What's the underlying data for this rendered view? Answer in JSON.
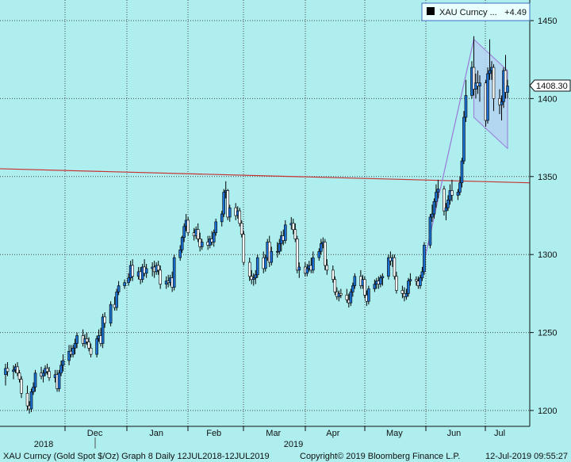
{
  "chart_data": {
    "type": "candlestick",
    "legend": {
      "symbol": "XAU Curncy ...",
      "change": "+4.49"
    },
    "last_price": "1408.30",
    "y_axis": {
      "ylim": [
        1192,
        1460
      ],
      "ticks": [
        1200,
        1250,
        1300,
        1350,
        1400,
        1450
      ],
      "tick_labels": [
        "1200",
        "1250",
        "1300",
        "1350",
        "1400",
        "1450"
      ]
    },
    "x_axis": {
      "months": [
        "Dec",
        "Jan",
        "Feb",
        "Mar",
        "Apr",
        "May",
        "Jun",
        "Jul"
      ],
      "years": [
        "2018",
        "2019"
      ]
    },
    "grid": true,
    "x_range": [
      "2018-07-12",
      "2019-07-12"
    ],
    "candles": [
      [
        "2018-11-01",
        1223,
        1230,
        1216,
        1227
      ],
      [
        "2018-11-02",
        1227,
        1231,
        1222,
        1225
      ],
      [
        "2018-11-05",
        1225,
        1229,
        1220,
        1226
      ],
      [
        "2018-11-06",
        1226,
        1230,
        1224,
        1228
      ],
      [
        "2018-11-07",
        1228,
        1231,
        1222,
        1224
      ],
      [
        "2018-11-08",
        1224,
        1226,
        1218,
        1220
      ],
      [
        "2018-11-09",
        1220,
        1222,
        1208,
        1211
      ],
      [
        "2018-11-12",
        1211,
        1216,
        1200,
        1203
      ],
      [
        "2018-11-13",
        1203,
        1206,
        1198,
        1201
      ],
      [
        "2018-11-14",
        1201,
        1214,
        1199,
        1212
      ],
      [
        "2018-11-15",
        1212,
        1218,
        1210,
        1215
      ],
      [
        "2018-11-16",
        1215,
        1226,
        1212,
        1224
      ],
      [
        "2018-11-19",
        1224,
        1228,
        1220,
        1222
      ],
      [
        "2018-11-20",
        1222,
        1226,
        1218,
        1224
      ],
      [
        "2018-11-21",
        1224,
        1229,
        1222,
        1227
      ],
      [
        "2018-11-22",
        1227,
        1230,
        1223,
        1225
      ],
      [
        "2018-11-23",
        1225,
        1228,
        1219,
        1221
      ],
      [
        "2018-11-26",
        1221,
        1226,
        1218,
        1223
      ],
      [
        "2018-11-27",
        1223,
        1226,
        1212,
        1214
      ],
      [
        "2018-11-28",
        1214,
        1226,
        1212,
        1224
      ],
      [
        "2018-11-29",
        1224,
        1232,
        1222,
        1229
      ],
      [
        "2018-11-30",
        1229,
        1236,
        1225,
        1232
      ],
      [
        "2018-12-03",
        1232,
        1242,
        1229,
        1238
      ],
      [
        "2018-12-04",
        1238,
        1242,
        1234,
        1236
      ],
      [
        "2018-12-05",
        1236,
        1242,
        1234,
        1240
      ],
      [
        "2018-12-06",
        1240,
        1246,
        1236,
        1243
      ],
      [
        "2018-12-07",
        1243,
        1250,
        1240,
        1248
      ],
      [
        "2018-12-10",
        1248,
        1252,
        1241,
        1243
      ],
      [
        "2018-12-11",
        1243,
        1249,
        1240,
        1246
      ],
      [
        "2018-12-12",
        1246,
        1250,
        1242,
        1244
      ],
      [
        "2018-12-13",
        1244,
        1247,
        1238,
        1240
      ],
      [
        "2018-12-14",
        1240,
        1243,
        1234,
        1236
      ],
      [
        "2018-12-17",
        1236,
        1248,
        1234,
        1246
      ],
      [
        "2018-12-18",
        1246,
        1252,
        1244,
        1248
      ],
      [
        "2018-12-19",
        1248,
        1253,
        1241,
        1243
      ],
      [
        "2018-12-20",
        1243,
        1262,
        1240,
        1260
      ],
      [
        "2018-12-21",
        1260,
        1263,
        1253,
        1256
      ],
      [
        "2018-12-24",
        1256,
        1270,
        1254,
        1268
      ],
      [
        "2018-12-26",
        1268,
        1273,
        1264,
        1266
      ],
      [
        "2018-12-27",
        1266,
        1278,
        1264,
        1276
      ],
      [
        "2018-12-28",
        1276,
        1283,
        1274,
        1280
      ],
      [
        "2018-12-31",
        1280,
        1284,
        1278,
        1282
      ],
      [
        "2019-01-02",
        1282,
        1288,
        1280,
        1285
      ],
      [
        "2019-01-03",
        1285,
        1296,
        1283,
        1293
      ],
      [
        "2019-01-04",
        1293,
        1297,
        1283,
        1286
      ],
      [
        "2019-01-07",
        1286,
        1292,
        1284,
        1289
      ],
      [
        "2019-01-08",
        1289,
        1292,
        1281,
        1284
      ],
      [
        "2019-01-09",
        1284,
        1294,
        1282,
        1292
      ],
      [
        "2019-01-10",
        1292,
        1297,
        1286,
        1288
      ],
      [
        "2019-01-11",
        1288,
        1294,
        1285,
        1291
      ],
      [
        "2019-01-14",
        1291,
        1295,
        1286,
        1292
      ],
      [
        "2019-01-15",
        1292,
        1296,
        1285,
        1289
      ],
      [
        "2019-01-16",
        1289,
        1295,
        1287,
        1293
      ],
      [
        "2019-01-17",
        1293,
        1296,
        1287,
        1290
      ],
      [
        "2019-01-18",
        1290,
        1293,
        1278,
        1281
      ],
      [
        "2019-01-21",
        1281,
        1286,
        1278,
        1283
      ],
      [
        "2019-01-22",
        1283,
        1287,
        1279,
        1282
      ],
      [
        "2019-01-23",
        1282,
        1287,
        1280,
        1285
      ],
      [
        "2019-01-24",
        1285,
        1289,
        1276,
        1279
      ],
      [
        "2019-01-25",
        1279,
        1300,
        1277,
        1298
      ],
      [
        "2019-01-28",
        1298,
        1306,
        1296,
        1303
      ],
      [
        "2019-01-29",
        1303,
        1312,
        1301,
        1311
      ],
      [
        "2019-01-30",
        1311,
        1320,
        1308,
        1318
      ],
      [
        "2019-01-31",
        1318,
        1326,
        1315,
        1322
      ],
      [
        "2019-02-01",
        1322,
        1324,
        1312,
        1314
      ],
      [
        "2019-02-04",
        1314,
        1317,
        1309,
        1312
      ],
      [
        "2019-02-05",
        1312,
        1318,
        1310,
        1316
      ],
      [
        "2019-02-06",
        1316,
        1320,
        1308,
        1310
      ],
      [
        "2019-02-07",
        1310,
        1314,
        1302,
        1305
      ],
      [
        "2019-02-08",
        1305,
        1310,
        1303,
        1308
      ],
      [
        "2019-02-11",
        1308,
        1312,
        1303,
        1306
      ],
      [
        "2019-02-12",
        1306,
        1312,
        1304,
        1310
      ],
      [
        "2019-02-13",
        1310,
        1315,
        1306,
        1308
      ],
      [
        "2019-02-14",
        1308,
        1316,
        1305,
        1314
      ],
      [
        "2019-02-15",
        1314,
        1323,
        1312,
        1321
      ],
      [
        "2019-02-18",
        1321,
        1328,
        1318,
        1326
      ],
      [
        "2019-02-19",
        1326,
        1342,
        1324,
        1340
      ],
      [
        "2019-02-20",
        1340,
        1347,
        1336,
        1341
      ],
      [
        "2019-02-21",
        1341,
        1342,
        1322,
        1324
      ],
      [
        "2019-02-22",
        1324,
        1332,
        1321,
        1330
      ],
      [
        "2019-02-25",
        1330,
        1333,
        1322,
        1325
      ],
      [
        "2019-02-26",
        1325,
        1331,
        1323,
        1328
      ],
      [
        "2019-02-27",
        1328,
        1330,
        1318,
        1320
      ],
      [
        "2019-02-28",
        1320,
        1322,
        1311,
        1313
      ],
      [
        "2019-03-01",
        1313,
        1315,
        1293,
        1295
      ],
      [
        "2019-03-04",
        1295,
        1298,
        1283,
        1286
      ],
      [
        "2019-03-05",
        1286,
        1290,
        1281,
        1284
      ],
      [
        "2019-03-06",
        1284,
        1288,
        1280,
        1285
      ],
      [
        "2019-03-07",
        1285,
        1290,
        1281,
        1287
      ],
      [
        "2019-03-08",
        1287,
        1300,
        1285,
        1298
      ],
      [
        "2019-03-11",
        1298,
        1302,
        1288,
        1291
      ],
      [
        "2019-03-12",
        1291,
        1300,
        1289,
        1298
      ],
      [
        "2019-03-13",
        1298,
        1310,
        1296,
        1308
      ],
      [
        "2019-03-14",
        1308,
        1312,
        1292,
        1295
      ],
      [
        "2019-03-15",
        1295,
        1305,
        1293,
        1302
      ],
      [
        "2019-03-18",
        1302,
        1308,
        1298,
        1302
      ],
      [
        "2019-03-19",
        1302,
        1310,
        1300,
        1307
      ],
      [
        "2019-03-20",
        1307,
        1315,
        1302,
        1312
      ],
      [
        "2019-03-21",
        1312,
        1316,
        1306,
        1309
      ],
      [
        "2019-03-22",
        1309,
        1322,
        1307,
        1319
      ],
      [
        "2019-03-25",
        1319,
        1324,
        1316,
        1320
      ],
      [
        "2019-03-26",
        1320,
        1323,
        1313,
        1316
      ],
      [
        "2019-03-27",
        1316,
        1320,
        1308,
        1310
      ],
      [
        "2019-03-28",
        1310,
        1312,
        1288,
        1290
      ],
      [
        "2019-03-29",
        1290,
        1295,
        1285,
        1292
      ],
      [
        "2019-04-01",
        1292,
        1295,
        1286,
        1288
      ],
      [
        "2019-04-02",
        1288,
        1294,
        1286,
        1291
      ],
      [
        "2019-04-03",
        1291,
        1296,
        1289,
        1293
      ],
      [
        "2019-04-04",
        1293,
        1298,
        1288,
        1290
      ],
      [
        "2019-04-05",
        1290,
        1302,
        1288,
        1298
      ],
      [
        "2019-04-08",
        1298,
        1304,
        1296,
        1302
      ],
      [
        "2019-04-09",
        1302,
        1310,
        1300,
        1307
      ],
      [
        "2019-04-10",
        1307,
        1311,
        1304,
        1308
      ],
      [
        "2019-04-11",
        1308,
        1310,
        1290,
        1293
      ],
      [
        "2019-04-12",
        1293,
        1297,
        1287,
        1290
      ],
      [
        "2019-04-15",
        1290,
        1293,
        1282,
        1284
      ],
      [
        "2019-04-16",
        1284,
        1286,
        1274,
        1276
      ],
      [
        "2019-04-17",
        1276,
        1279,
        1271,
        1273
      ],
      [
        "2019-04-18",
        1273,
        1277,
        1270,
        1275
      ],
      [
        "2019-04-19",
        1275,
        1278,
        1272,
        1274
      ],
      [
        "2019-04-22",
        1274,
        1278,
        1269,
        1271
      ],
      [
        "2019-04-23",
        1271,
        1275,
        1266,
        1269
      ],
      [
        "2019-04-24",
        1269,
        1278,
        1267,
        1276
      ],
      [
        "2019-04-25",
        1276,
        1282,
        1273,
        1280
      ],
      [
        "2019-04-26",
        1280,
        1288,
        1278,
        1286
      ],
      [
        "2019-04-29",
        1286,
        1290,
        1278,
        1280
      ],
      [
        "2019-04-30",
        1280,
        1287,
        1278,
        1284
      ],
      [
        "2019-05-01",
        1284,
        1286,
        1272,
        1274
      ],
      [
        "2019-05-02",
        1274,
        1277,
        1267,
        1270
      ],
      [
        "2019-05-03",
        1270,
        1280,
        1268,
        1278
      ],
      [
        "2019-05-06",
        1278,
        1284,
        1276,
        1281
      ],
      [
        "2019-05-07",
        1281,
        1285,
        1278,
        1283
      ],
      [
        "2019-05-08",
        1283,
        1286,
        1278,
        1281
      ],
      [
        "2019-05-09",
        1281,
        1287,
        1279,
        1285
      ],
      [
        "2019-05-10",
        1285,
        1288,
        1280,
        1286
      ],
      [
        "2019-05-13",
        1286,
        1300,
        1284,
        1298
      ],
      [
        "2019-05-14",
        1298,
        1302,
        1293,
        1296
      ],
      [
        "2019-05-15",
        1296,
        1300,
        1292,
        1298
      ],
      [
        "2019-05-16",
        1298,
        1300,
        1284,
        1286
      ],
      [
        "2019-05-17",
        1286,
        1289,
        1275,
        1277
      ],
      [
        "2019-05-20",
        1277,
        1280,
        1272,
        1275
      ],
      [
        "2019-05-21",
        1275,
        1279,
        1270,
        1273
      ],
      [
        "2019-05-22",
        1273,
        1278,
        1271,
        1275
      ],
      [
        "2019-05-23",
        1275,
        1285,
        1273,
        1283
      ],
      [
        "2019-05-24",
        1283,
        1288,
        1280,
        1284
      ],
      [
        "2019-05-27",
        1284,
        1286,
        1280,
        1283
      ],
      [
        "2019-05-28",
        1283,
        1286,
        1278,
        1280
      ],
      [
        "2019-05-29",
        1280,
        1287,
        1278,
        1285
      ],
      [
        "2019-05-30",
        1285,
        1292,
        1283,
        1289
      ],
      [
        "2019-05-31",
        1289,
        1308,
        1287,
        1306
      ],
      [
        "2019-06-03",
        1306,
        1326,
        1304,
        1324
      ],
      [
        "2019-06-04",
        1324,
        1332,
        1321,
        1326
      ],
      [
        "2019-06-05",
        1326,
        1336,
        1323,
        1334
      ],
      [
        "2019-06-06",
        1334,
        1345,
        1330,
        1340
      ],
      [
        "2019-06-07",
        1340,
        1348,
        1336,
        1342
      ],
      [
        "2019-06-10",
        1342,
        1344,
        1325,
        1328
      ],
      [
        "2019-06-11",
        1328,
        1333,
        1322,
        1330
      ],
      [
        "2019-06-12",
        1330,
        1338,
        1328,
        1335
      ],
      [
        "2019-06-13",
        1335,
        1345,
        1332,
        1341
      ],
      [
        "2019-06-14",
        1341,
        1348,
        1334,
        1338
      ],
      [
        "2019-06-17",
        1338,
        1342,
        1335,
        1340
      ],
      [
        "2019-06-18",
        1340,
        1350,
        1338,
        1346
      ],
      [
        "2019-06-19",
        1346,
        1362,
        1343,
        1360
      ],
      [
        "2019-06-20",
        1360,
        1392,
        1358,
        1388
      ],
      [
        "2019-06-21",
        1388,
        1412,
        1385,
        1402
      ],
      [
        "2019-06-24",
        1402,
        1424,
        1400,
        1420
      ],
      [
        "2019-06-25",
        1420,
        1440,
        1402,
        1406
      ],
      [
        "2019-06-26",
        1406,
        1416,
        1400,
        1410
      ],
      [
        "2019-06-27",
        1410,
        1418,
        1403,
        1408
      ],
      [
        "2019-06-28",
        1408,
        1415,
        1398,
        1410
      ],
      [
        "2019-07-01",
        1410,
        1412,
        1382,
        1386
      ],
      [
        "2019-07-02",
        1386,
        1420,
        1384,
        1416
      ],
      [
        "2019-07-03",
        1416,
        1438,
        1412,
        1418
      ],
      [
        "2019-07-04",
        1418,
        1424,
        1412,
        1420
      ],
      [
        "2019-07-05",
        1420,
        1422,
        1392,
        1400
      ],
      [
        "2019-07-08",
        1400,
        1406,
        1390,
        1396
      ],
      [
        "2019-07-09",
        1396,
        1402,
        1386,
        1398
      ],
      [
        "2019-07-10",
        1398,
        1420,
        1394,
        1418
      ],
      [
        "2019-07-11",
        1418,
        1428,
        1400,
        1404
      ],
      [
        "2019-07-12",
        1404,
        1412,
        1400,
        1408
      ]
    ],
    "trendlines": [
      {
        "name": "red-trendline",
        "color": "#c83232",
        "points": [
          [
            "2018-07-12",
            1355
          ],
          [
            "2019-07-12",
            1346
          ]
        ]
      },
      {
        "name": "purple-rise-line",
        "color": "#9a7ad8",
        "points": [
          [
            "2019-05-30",
            1290
          ],
          [
            "2019-06-25",
            1438
          ]
        ]
      }
    ],
    "channel": {
      "color": "#9a7ad8",
      "fill": "#b4d2f0",
      "upper": [
        [
          "2019-06-25",
          1438
        ],
        [
          "2019-07-12",
          1418
        ]
      ],
      "lower": [
        [
          "2019-06-25",
          1388
        ],
        [
          "2019-07-12",
          1368
        ]
      ]
    },
    "colors": {
      "up_body": "#1a6fd0",
      "down_body": "#ffffff",
      "wick": "#000000",
      "background": "#aeeeee",
      "grid": "#3a3a3a"
    }
  },
  "footer": {
    "left": "XAU Curncy (Gold Spot  $/Oz) Graph 8  Daily 12JUL2018-12JUL2019",
    "center": "Copyright© 2019 Bloomberg Finance L.P.",
    "right": "12-Jul-2019 09:55:27"
  }
}
